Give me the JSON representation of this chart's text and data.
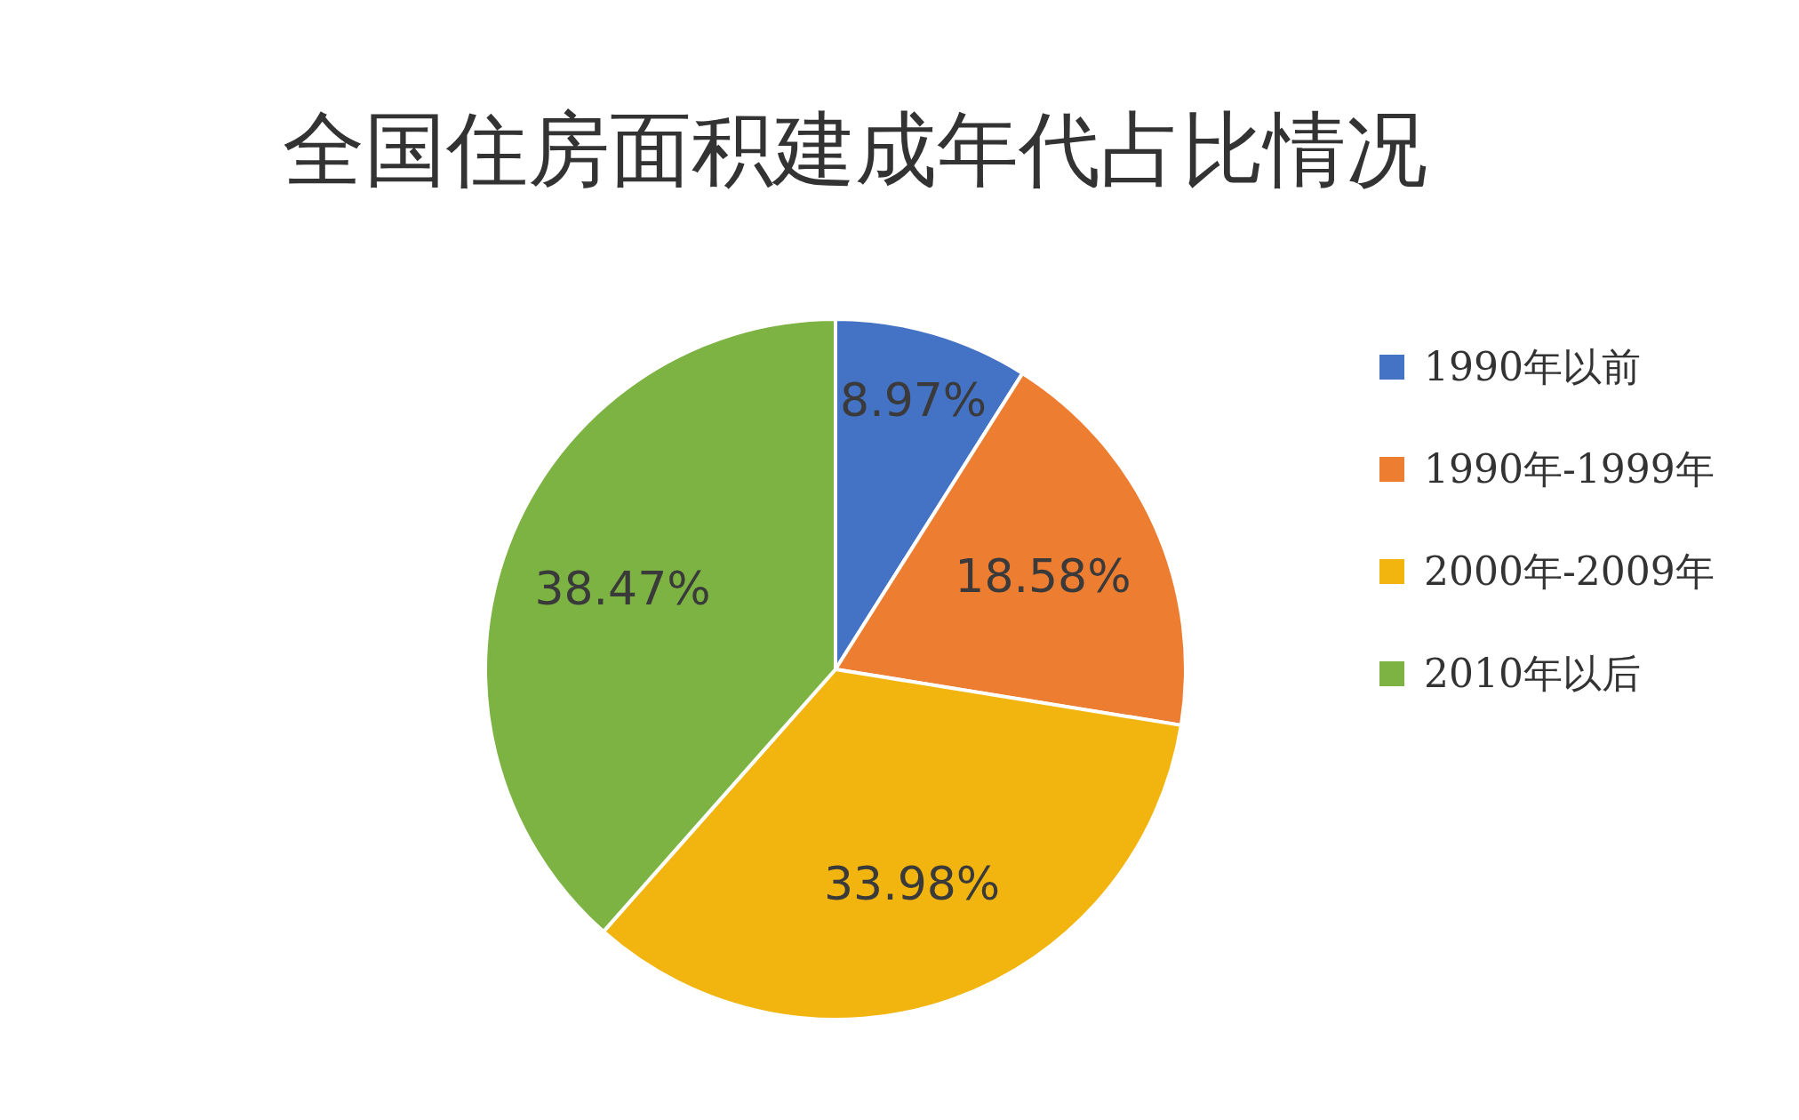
{
  "chart_data": {
    "type": "pie",
    "title": "全国住房面积建成年代占比情况",
    "categories": [
      "1990年以前",
      "1990年-1999年",
      "2000年-2009年",
      "2010年以后"
    ],
    "values": [
      8.97,
      18.58,
      33.98,
      38.47
    ],
    "colors": [
      "#4472c4",
      "#ed7d31",
      "#f2b50f",
      "#7cb342"
    ],
    "value_labels": [
      "8.97%",
      "18.58%",
      "33.98%",
      "38.47%"
    ],
    "legend": "right"
  }
}
